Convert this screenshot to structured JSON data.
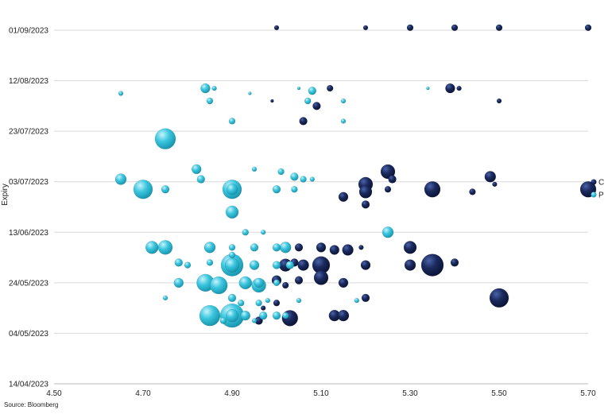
{
  "chart_data": {
    "type": "scatter",
    "title": "",
    "xlabel": "",
    "ylabel": "Expiry",
    "source": "Source: Bloomberg",
    "xlim": [
      4.5,
      5.7
    ],
    "x_ticks": [
      "4.50",
      "4.70",
      "4.90",
      "5.10",
      "5.30",
      "5.50",
      "5.70"
    ],
    "ylim": [
      "2023-04-14",
      "2023-09-01"
    ],
    "y_ticks": [
      "14/04/2023",
      "04/05/2023",
      "24/05/2023",
      "13/06/2023",
      "03/07/2023",
      "23/07/2023",
      "12/08/2023",
      "01/09/2023"
    ],
    "grid": "horizontal",
    "legend_position": "right",
    "colors": {
      "C": "#1b2a5e",
      "P": "#3cc6df"
    },
    "series": [
      {
        "name": "C",
        "points": [
          {
            "x": 5.0,
            "y": "2023-09-02",
            "s": 3
          },
          {
            "x": 5.2,
            "y": "2023-09-02",
            "s": 3
          },
          {
            "x": 5.3,
            "y": "2023-09-02",
            "s": 4
          },
          {
            "x": 5.4,
            "y": "2023-09-02",
            "s": 4
          },
          {
            "x": 5.5,
            "y": "2023-09-02",
            "s": 4
          },
          {
            "x": 5.7,
            "y": "2023-09-02",
            "s": 4
          },
          {
            "x": 5.12,
            "y": "2023-08-09",
            "s": 4
          },
          {
            "x": 5.39,
            "y": "2023-08-09",
            "s": 6
          },
          {
            "x": 5.41,
            "y": "2023-08-09",
            "s": 3
          },
          {
            "x": 5.09,
            "y": "2023-08-02",
            "s": 5
          },
          {
            "x": 5.5,
            "y": "2023-08-04",
            "s": 3
          },
          {
            "x": 5.06,
            "y": "2023-07-27",
            "s": 5
          },
          {
            "x": 4.99,
            "y": "2023-08-04",
            "s": 2
          },
          {
            "x": 5.25,
            "y": "2023-07-07",
            "s": 9
          },
          {
            "x": 5.26,
            "y": "2023-07-04",
            "s": 5
          },
          {
            "x": 5.48,
            "y": "2023-07-05",
            "s": 7
          },
          {
            "x": 5.49,
            "y": "2023-07-02",
            "s": 3
          },
          {
            "x": 5.2,
            "y": "2023-07-02",
            "s": 9
          },
          {
            "x": 5.2,
            "y": "2023-06-29",
            "s": 8
          },
          {
            "x": 5.25,
            "y": "2023-06-30",
            "s": 4
          },
          {
            "x": 5.35,
            "y": "2023-06-30",
            "s": 10
          },
          {
            "x": 5.44,
            "y": "2023-06-29",
            "s": 4
          },
          {
            "x": 5.7,
            "y": "2023-06-30",
            "s": 10
          },
          {
            "x": 5.15,
            "y": "2023-06-27",
            "s": 6
          },
          {
            "x": 5.2,
            "y": "2023-06-24",
            "s": 5
          },
          {
            "x": 5.3,
            "y": "2023-06-07",
            "s": 8
          },
          {
            "x": 5.1,
            "y": "2023-06-07",
            "s": 6
          },
          {
            "x": 5.13,
            "y": "2023-06-06",
            "s": 6
          },
          {
            "x": 5.16,
            "y": "2023-06-06",
            "s": 7
          },
          {
            "x": 5.19,
            "y": "2023-06-07",
            "s": 3
          },
          {
            "x": 5.05,
            "y": "2023-06-07",
            "s": 5
          },
          {
            "x": 5.04,
            "y": "2023-06-01",
            "s": 5
          },
          {
            "x": 5.06,
            "y": "2023-05-31",
            "s": 7
          },
          {
            "x": 5.02,
            "y": "2023-05-31",
            "s": 8
          },
          {
            "x": 5.1,
            "y": "2023-05-31",
            "s": 11
          },
          {
            "x": 5.2,
            "y": "2023-05-31",
            "s": 6
          },
          {
            "x": 5.3,
            "y": "2023-05-31",
            "s": 7
          },
          {
            "x": 5.35,
            "y": "2023-05-31",
            "s": 14
          },
          {
            "x": 5.4,
            "y": "2023-06-01",
            "s": 5
          },
          {
            "x": 5.0,
            "y": "2023-05-25",
            "s": 6
          },
          {
            "x": 5.05,
            "y": "2023-05-25",
            "s": 5
          },
          {
            "x": 5.1,
            "y": "2023-05-26",
            "s": 9
          },
          {
            "x": 5.15,
            "y": "2023-05-24",
            "s": 6
          },
          {
            "x": 5.02,
            "y": "2023-05-23",
            "s": 4
          },
          {
            "x": 5.2,
            "y": "2023-05-18",
            "s": 5
          },
          {
            "x": 5.5,
            "y": "2023-05-18",
            "s": 12
          },
          {
            "x": 5.03,
            "y": "2023-05-10",
            "s": 10
          },
          {
            "x": 5.13,
            "y": "2023-05-11",
            "s": 7
          },
          {
            "x": 5.15,
            "y": "2023-05-11",
            "s": 7
          },
          {
            "x": 4.96,
            "y": "2023-05-09",
            "s": 5
          },
          {
            "x": 4.97,
            "y": "2023-05-14",
            "s": 3
          },
          {
            "x": 5.0,
            "y": "2023-05-16",
            "s": 4
          }
        ]
      },
      {
        "name": "P",
        "points": [
          {
            "x": 4.65,
            "y": "2023-08-07",
            "s": 3
          },
          {
            "x": 4.84,
            "y": "2023-08-09",
            "s": 6
          },
          {
            "x": 4.86,
            "y": "2023-08-09",
            "s": 3
          },
          {
            "x": 4.85,
            "y": "2023-08-04",
            "s": 4
          },
          {
            "x": 4.94,
            "y": "2023-08-07",
            "s": 2
          },
          {
            "x": 5.08,
            "y": "2023-08-08",
            "s": 5
          },
          {
            "x": 5.07,
            "y": "2023-08-04",
            "s": 4
          },
          {
            "x": 5.15,
            "y": "2023-08-04",
            "s": 3
          },
          {
            "x": 5.15,
            "y": "2023-07-27",
            "s": 3
          },
          {
            "x": 5.05,
            "y": "2023-08-09",
            "s": 2
          },
          {
            "x": 5.34,
            "y": "2023-08-09",
            "s": 2
          },
          {
            "x": 4.9,
            "y": "2023-07-27",
            "s": 4
          },
          {
            "x": 4.75,
            "y": "2023-07-20",
            "s": 13
          },
          {
            "x": 4.82,
            "y": "2023-07-08",
            "s": 6
          },
          {
            "x": 4.95,
            "y": "2023-07-08",
            "s": 3
          },
          {
            "x": 5.01,
            "y": "2023-07-07",
            "s": 4
          },
          {
            "x": 4.65,
            "y": "2023-07-04",
            "s": 7
          },
          {
            "x": 4.83,
            "y": "2023-07-04",
            "s": 5
          },
          {
            "x": 5.04,
            "y": "2023-07-05",
            "s": 5
          },
          {
            "x": 5.06,
            "y": "2023-07-04",
            "s": 4
          },
          {
            "x": 5.08,
            "y": "2023-07-04",
            "s": 3
          },
          {
            "x": 4.7,
            "y": "2023-06-30",
            "s": 12
          },
          {
            "x": 4.75,
            "y": "2023-06-30",
            "s": 5
          },
          {
            "x": 4.9,
            "y": "2023-06-30",
            "s": 12
          },
          {
            "x": 4.9,
            "y": "2023-06-30",
            "s": 7
          },
          {
            "x": 5.0,
            "y": "2023-06-30",
            "s": 5
          },
          {
            "x": 5.04,
            "y": "2023-06-30",
            "s": 4
          },
          {
            "x": 4.9,
            "y": "2023-06-21",
            "s": 8
          },
          {
            "x": 4.93,
            "y": "2023-06-13",
            "s": 4
          },
          {
            "x": 4.97,
            "y": "2023-06-13",
            "s": 3
          },
          {
            "x": 5.25,
            "y": "2023-06-13",
            "s": 7
          },
          {
            "x": 4.72,
            "y": "2023-06-07",
            "s": 8
          },
          {
            "x": 4.75,
            "y": "2023-06-07",
            "s": 9
          },
          {
            "x": 4.85,
            "y": "2023-06-07",
            "s": 7
          },
          {
            "x": 4.9,
            "y": "2023-06-07",
            "s": 4
          },
          {
            "x": 4.95,
            "y": "2023-06-07",
            "s": 5
          },
          {
            "x": 5.0,
            "y": "2023-06-07",
            "s": 5
          },
          {
            "x": 5.02,
            "y": "2023-06-07",
            "s": 7
          },
          {
            "x": 4.78,
            "y": "2023-06-01",
            "s": 5
          },
          {
            "x": 4.8,
            "y": "2023-05-31",
            "s": 4
          },
          {
            "x": 4.85,
            "y": "2023-06-01",
            "s": 4
          },
          {
            "x": 4.9,
            "y": "2023-05-31",
            "s": 14
          },
          {
            "x": 4.9,
            "y": "2023-05-31",
            "s": 9
          },
          {
            "x": 4.95,
            "y": "2023-05-31",
            "s": 6
          },
          {
            "x": 5.0,
            "y": "2023-05-31",
            "s": 5
          },
          {
            "x": 5.03,
            "y": "2023-05-31",
            "s": 5
          },
          {
            "x": 4.9,
            "y": "2023-06-04",
            "s": 4
          },
          {
            "x": 4.78,
            "y": "2023-05-24",
            "s": 6
          },
          {
            "x": 4.84,
            "y": "2023-05-24",
            "s": 11
          },
          {
            "x": 4.87,
            "y": "2023-05-23",
            "s": 11
          },
          {
            "x": 4.93,
            "y": "2023-05-24",
            "s": 8
          },
          {
            "x": 4.96,
            "y": "2023-05-23",
            "s": 9
          },
          {
            "x": 4.96,
            "y": "2023-05-24",
            "s": 6
          },
          {
            "x": 5.0,
            "y": "2023-05-24",
            "s": 4
          },
          {
            "x": 4.75,
            "y": "2023-05-18",
            "s": 3
          },
          {
            "x": 4.9,
            "y": "2023-05-18",
            "s": 5
          },
          {
            "x": 4.92,
            "y": "2023-05-16",
            "s": 4
          },
          {
            "x": 4.96,
            "y": "2023-05-16",
            "s": 4
          },
          {
            "x": 4.98,
            "y": "2023-05-17",
            "s": 3
          },
          {
            "x": 5.05,
            "y": "2023-05-17",
            "s": 3
          },
          {
            "x": 5.18,
            "y": "2023-05-17",
            "s": 3
          },
          {
            "x": 4.85,
            "y": "2023-05-11",
            "s": 13
          },
          {
            "x": 4.9,
            "y": "2023-05-11",
            "s": 15
          },
          {
            "x": 4.9,
            "y": "2023-05-11",
            "s": 8
          },
          {
            "x": 4.93,
            "y": "2023-05-11",
            "s": 6
          },
          {
            "x": 4.97,
            "y": "2023-05-11",
            "s": 5
          },
          {
            "x": 5.0,
            "y": "2023-05-11",
            "s": 5
          },
          {
            "x": 5.02,
            "y": "2023-05-11",
            "s": 4
          },
          {
            "x": 4.95,
            "y": "2023-05-09",
            "s": 3
          },
          {
            "x": 4.88,
            "y": "2023-05-09",
            "s": 4
          }
        ]
      }
    ]
  }
}
